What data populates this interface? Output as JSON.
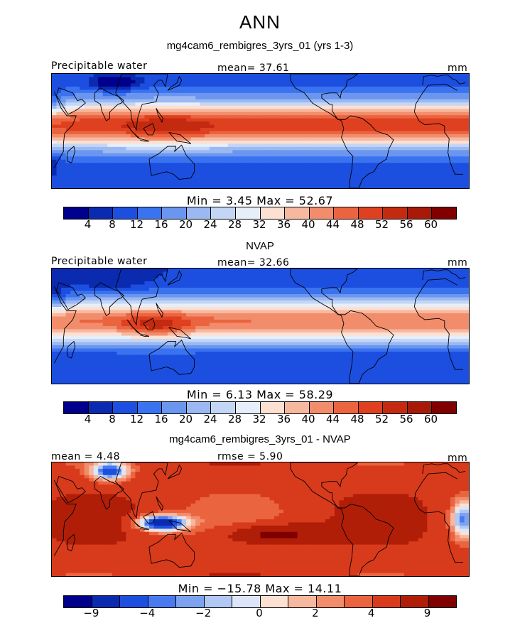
{
  "header": {
    "season": "ANN"
  },
  "panels": [
    {
      "title": "mg4cam6_rembigres_3yrs_01 (yrs 1-3)",
      "left_label": "Precipitable water",
      "center_label": "mean=  37.61",
      "right_label": "mm",
      "minmax": "Min =    3.45  Max =   52.67",
      "field": "model",
      "colorbar": "abs"
    },
    {
      "title": "NVAP",
      "left_label": "Precipitable water",
      "center_label": "mean=  32.66",
      "right_label": "mm",
      "minmax": "Min =    6.13  Max =   58.29",
      "field": "obs",
      "colorbar": "abs"
    },
    {
      "title": "mg4cam6_rembigres_3yrs_01 - NVAP",
      "left_label": "mean =    4.48",
      "center_label": "rmse =    5.90",
      "right_label": "mm",
      "minmax": "Min = −15.78  Max =   14.11",
      "field": "diff",
      "colorbar": "diff"
    }
  ],
  "colorbars": {
    "abs": {
      "colors": [
        "#00008c",
        "#0a2ab0",
        "#1c4fe0",
        "#3a73f0",
        "#6a96ef",
        "#9bb8f2",
        "#c3d6f5",
        "#e6eefa",
        "#fce0d2",
        "#f7b8a0",
        "#f28d6c",
        "#eb6440",
        "#de4020",
        "#c42a10",
        "#a81a08",
        "#800000"
      ],
      "ticks": [
        "4",
        "8",
        "12",
        "16",
        "20",
        "24",
        "28",
        "32",
        "36",
        "40",
        "44",
        "48",
        "52",
        "56",
        "60"
      ]
    },
    "diff": {
      "colors": [
        "#00008c",
        "#0a2ab0",
        "#1c4fe0",
        "#4a7af0",
        "#7da2f0",
        "#b0c8f3",
        "#dce6f8",
        "#fce0d2",
        "#f7b8a0",
        "#f28d6c",
        "#eb6440",
        "#d83a1c",
        "#b01e08",
        "#800000"
      ],
      "ticks": [
        "−9",
        "−4",
        "−2",
        "0",
        "2",
        "4",
        "9"
      ],
      "tick_slots": [
        1,
        3,
        5,
        7,
        9,
        11,
        13
      ]
    }
  }
}
